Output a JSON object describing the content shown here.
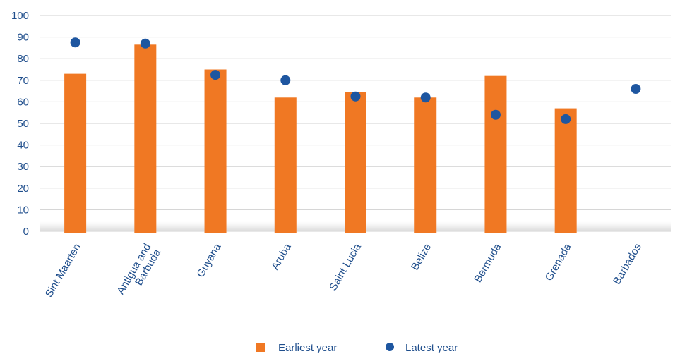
{
  "chart_data": {
    "type": "bar",
    "categories": [
      [
        "Sint Maarten"
      ],
      [
        "Antigua and",
        "Barbuda"
      ],
      [
        "Guyana"
      ],
      [
        "Aruba"
      ],
      [
        "Saint Lucia"
      ],
      [
        "Belize"
      ],
      [
        "Bermuda"
      ],
      [
        "Grenada"
      ],
      [
        "Barbados"
      ]
    ],
    "series": [
      {
        "name": "Earliest year",
        "kind": "bar",
        "color": "#f07823",
        "values": [
          73,
          86.5,
          75,
          62,
          64.5,
          62,
          72,
          57,
          null
        ]
      },
      {
        "name": "Latest year",
        "kind": "dot",
        "color": "#1e56a0",
        "values": [
          87.5,
          87,
          72.5,
          70,
          62.5,
          62,
          54,
          52,
          66
        ]
      }
    ],
    "ylim": [
      0,
      100
    ],
    "yticks": [
      0,
      10,
      20,
      30,
      40,
      50,
      60,
      70,
      80,
      90,
      100
    ],
    "grid": true,
    "legend_position": "bottom-center",
    "xlabel": "",
    "ylabel": "",
    "title": ""
  }
}
